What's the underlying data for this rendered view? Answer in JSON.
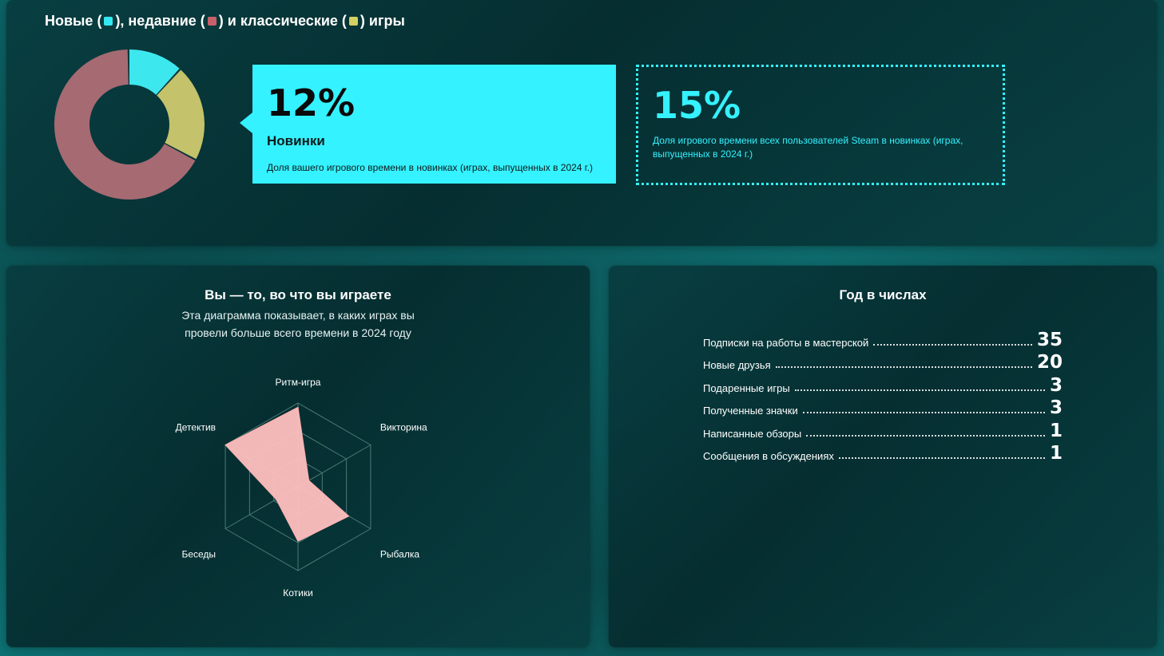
{
  "top": {
    "title_part1": "Новые (",
    "title_part2": "), недавние (",
    "title_part3": ") и классические (",
    "title_part4": ") игры",
    "colors": {
      "new": "#34e8f2",
      "recent": "#c8606a",
      "classic": "#d4d062"
    }
  },
  "donut": {
    "segments": [
      {
        "name": "Новые",
        "value": 12,
        "color": "#3ce8ee"
      },
      {
        "name": "Классические",
        "value": 21,
        "color": "#c4c26a"
      },
      {
        "name": "Недавние",
        "value": 67,
        "color": "#a66a72"
      }
    ]
  },
  "stat_user": {
    "value": "12%",
    "label": "Новинки",
    "desc": "Доля вашего игрового времени в новинках (играх, выпущенных в 2024 г.)"
  },
  "stat_all": {
    "value": "15%",
    "desc": "Доля игрового времени всех пользователей Steam в новинках (играх, выпущенных в 2024 г.)"
  },
  "radar_section": {
    "title": "Вы — то, во что вы играете",
    "subtitle": "Эта диаграмма показывает, в каких играх вы провели больше всего времени в 2024 году"
  },
  "chart_data": {
    "type": "radar",
    "categories": [
      "Ритм-игра",
      "Викторина",
      "Рыбалка",
      "Котики",
      "Беседы",
      "Детектив"
    ],
    "values": [
      0.95,
      0.15,
      0.7,
      0.65,
      0.3,
      1.0
    ],
    "max": 1,
    "rings": 3,
    "fill_color": "#ffc0c0",
    "grid_color": "#4a7a74"
  },
  "year_section": {
    "title": "Год в числах",
    "stats": [
      {
        "label": "Подписки на работы в мастерской",
        "value": "35"
      },
      {
        "label": "Новые друзья",
        "value": "20"
      },
      {
        "label": "Подаренные игры",
        "value": "3"
      },
      {
        "label": "Полученные значки",
        "value": "3"
      },
      {
        "label": "Написанные обзоры",
        "value": "1"
      },
      {
        "label": "Сообщения в обсуждениях",
        "value": "1"
      }
    ]
  }
}
